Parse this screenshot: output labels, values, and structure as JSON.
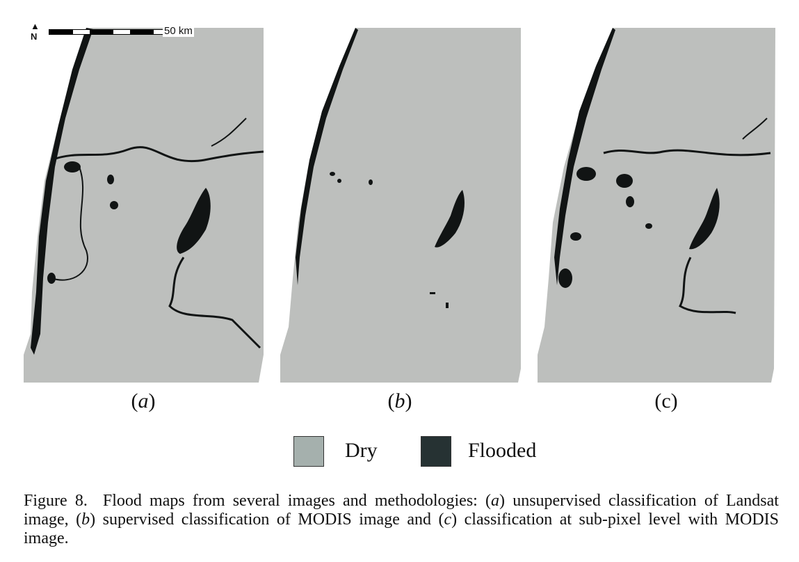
{
  "colors": {
    "dry": "#bdbfbd",
    "flooded": "#111414",
    "legend_dry": "#a5b0ad",
    "legend_flooded": "#263233"
  },
  "scalebar": {
    "north": "N",
    "label": "50 km"
  },
  "panels": [
    {
      "id": "a",
      "open": "(",
      "letter": "a",
      "close": ")"
    },
    {
      "id": "b",
      "open": "(",
      "letter": "b",
      "close": ")"
    },
    {
      "id": "c",
      "open": "(",
      "letter": "c",
      "close": ")"
    }
  ],
  "legend": {
    "dry": "Dry",
    "flooded": "Flooded"
  },
  "caption": {
    "figure": "Figure 8.",
    "p1": "Flood maps from several images and methodologies: (",
    "a": "a",
    "p2": ") unsupervised classification of Landsat image, (",
    "b": "b",
    "p3": ") supervised classification of MODIS image and (",
    "c": "c",
    "p4": ") classification at sub-pixel level with MODIS image."
  }
}
